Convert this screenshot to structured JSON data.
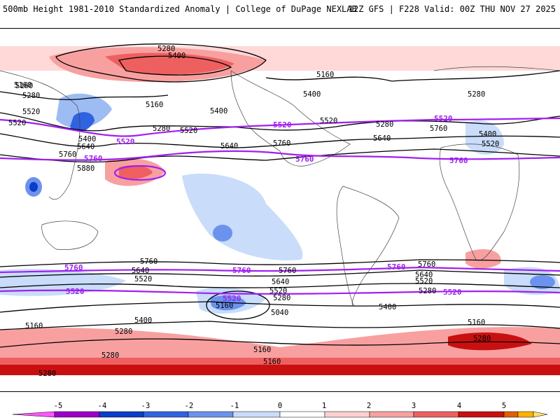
{
  "header": {
    "title": "500mb Height 1981-2010 Standardized Anomaly | College of DuPage NEXLAB",
    "run_info": "12Z GFS | F228 Valid: 00Z THU NOV 27 2025"
  },
  "colors": {
    "contour": "#000000",
    "highlight_contour": "#a020f0",
    "scale": [
      "#ff55ff",
      "#9b00c8",
      "#0b3ec8",
      "#2f63e0",
      "#6b93ee",
      "#c9dcfa",
      "#ffffff",
      "#ffd0d0",
      "#f8a0a0",
      "#ee6060",
      "#c81010",
      "#e06000",
      "#ffb000",
      "#ffe070"
    ]
  },
  "contour_labels": [
    {
      "text": "5280",
      "kind": "black"
    },
    {
      "text": "5400",
      "kind": "black"
    },
    {
      "text": "5160",
      "kind": "black"
    },
    {
      "text": "5160",
      "kind": "black"
    },
    {
      "text": "5280",
      "kind": "black"
    },
    {
      "text": "5520",
      "kind": "black"
    },
    {
      "text": "5160",
      "kind": "black"
    },
    {
      "text": "5400",
      "kind": "black"
    },
    {
      "text": "5280",
      "kind": "black"
    },
    {
      "text": "5520",
      "kind": "black"
    },
    {
      "text": "5640",
      "kind": "black"
    },
    {
      "text": "5760",
      "kind": "black"
    },
    {
      "text": "5880",
      "kind": "black"
    },
    {
      "text": "5400",
      "kind": "black"
    },
    {
      "text": "5520",
      "kind": "black"
    },
    {
      "text": "5400",
      "kind": "black"
    },
    {
      "text": "5160",
      "kind": "black"
    },
    {
      "text": "5520",
      "kind": "black"
    },
    {
      "text": "5280",
      "kind": "black"
    },
    {
      "text": "5640",
      "kind": "black"
    },
    {
      "text": "5760",
      "kind": "black"
    },
    {
      "text": "5640",
      "kind": "black"
    },
    {
      "text": "5280",
      "kind": "black"
    },
    {
      "text": "5760",
      "kind": "black"
    },
    {
      "text": "5400",
      "kind": "black"
    },
    {
      "text": "5520",
      "kind": "black"
    },
    {
      "text": "5760",
      "kind": "black"
    },
    {
      "text": "5640",
      "kind": "black"
    },
    {
      "text": "5520",
      "kind": "black"
    },
    {
      "text": "5400",
      "kind": "black"
    },
    {
      "text": "5160",
      "kind": "black"
    },
    {
      "text": "5280",
      "kind": "black"
    },
    {
      "text": "5760",
      "kind": "black"
    },
    {
      "text": "5640",
      "kind": "black"
    },
    {
      "text": "5520",
      "kind": "black"
    },
    {
      "text": "5280",
      "kind": "black"
    },
    {
      "text": "5160",
      "kind": "black"
    },
    {
      "text": "5040",
      "kind": "black"
    },
    {
      "text": "5760",
      "kind": "black"
    },
    {
      "text": "5640",
      "kind": "black"
    },
    {
      "text": "5520",
      "kind": "black"
    },
    {
      "text": "5280",
      "kind": "black"
    },
    {
      "text": "5400",
      "kind": "black"
    },
    {
      "text": "5160",
      "kind": "black"
    },
    {
      "text": "5160",
      "kind": "black"
    },
    {
      "text": "5160",
      "kind": "black"
    },
    {
      "text": "5280",
      "kind": "black"
    },
    {
      "text": "5280",
      "kind": "black"
    },
    {
      "text": "5280",
      "kind": "black"
    },
    {
      "text": "5520",
      "kind": "purple"
    },
    {
      "text": "5520",
      "kind": "purple"
    },
    {
      "text": "5520",
      "kind": "purple"
    },
    {
      "text": "5760",
      "kind": "purple"
    },
    {
      "text": "5760",
      "kind": "purple"
    },
    {
      "text": "5760",
      "kind": "purple"
    },
    {
      "text": "5760",
      "kind": "purple"
    },
    {
      "text": "5760",
      "kind": "purple"
    },
    {
      "text": "5760",
      "kind": "purple"
    },
    {
      "text": "5520",
      "kind": "purple"
    },
    {
      "text": "5520",
      "kind": "purple"
    },
    {
      "text": "5520",
      "kind": "purple"
    }
  ],
  "colorbar": {
    "ticks": [
      "-5",
      "-4",
      "-3",
      "-2",
      "-1",
      "0",
      "1",
      "2",
      "3",
      "4",
      "5"
    ]
  }
}
